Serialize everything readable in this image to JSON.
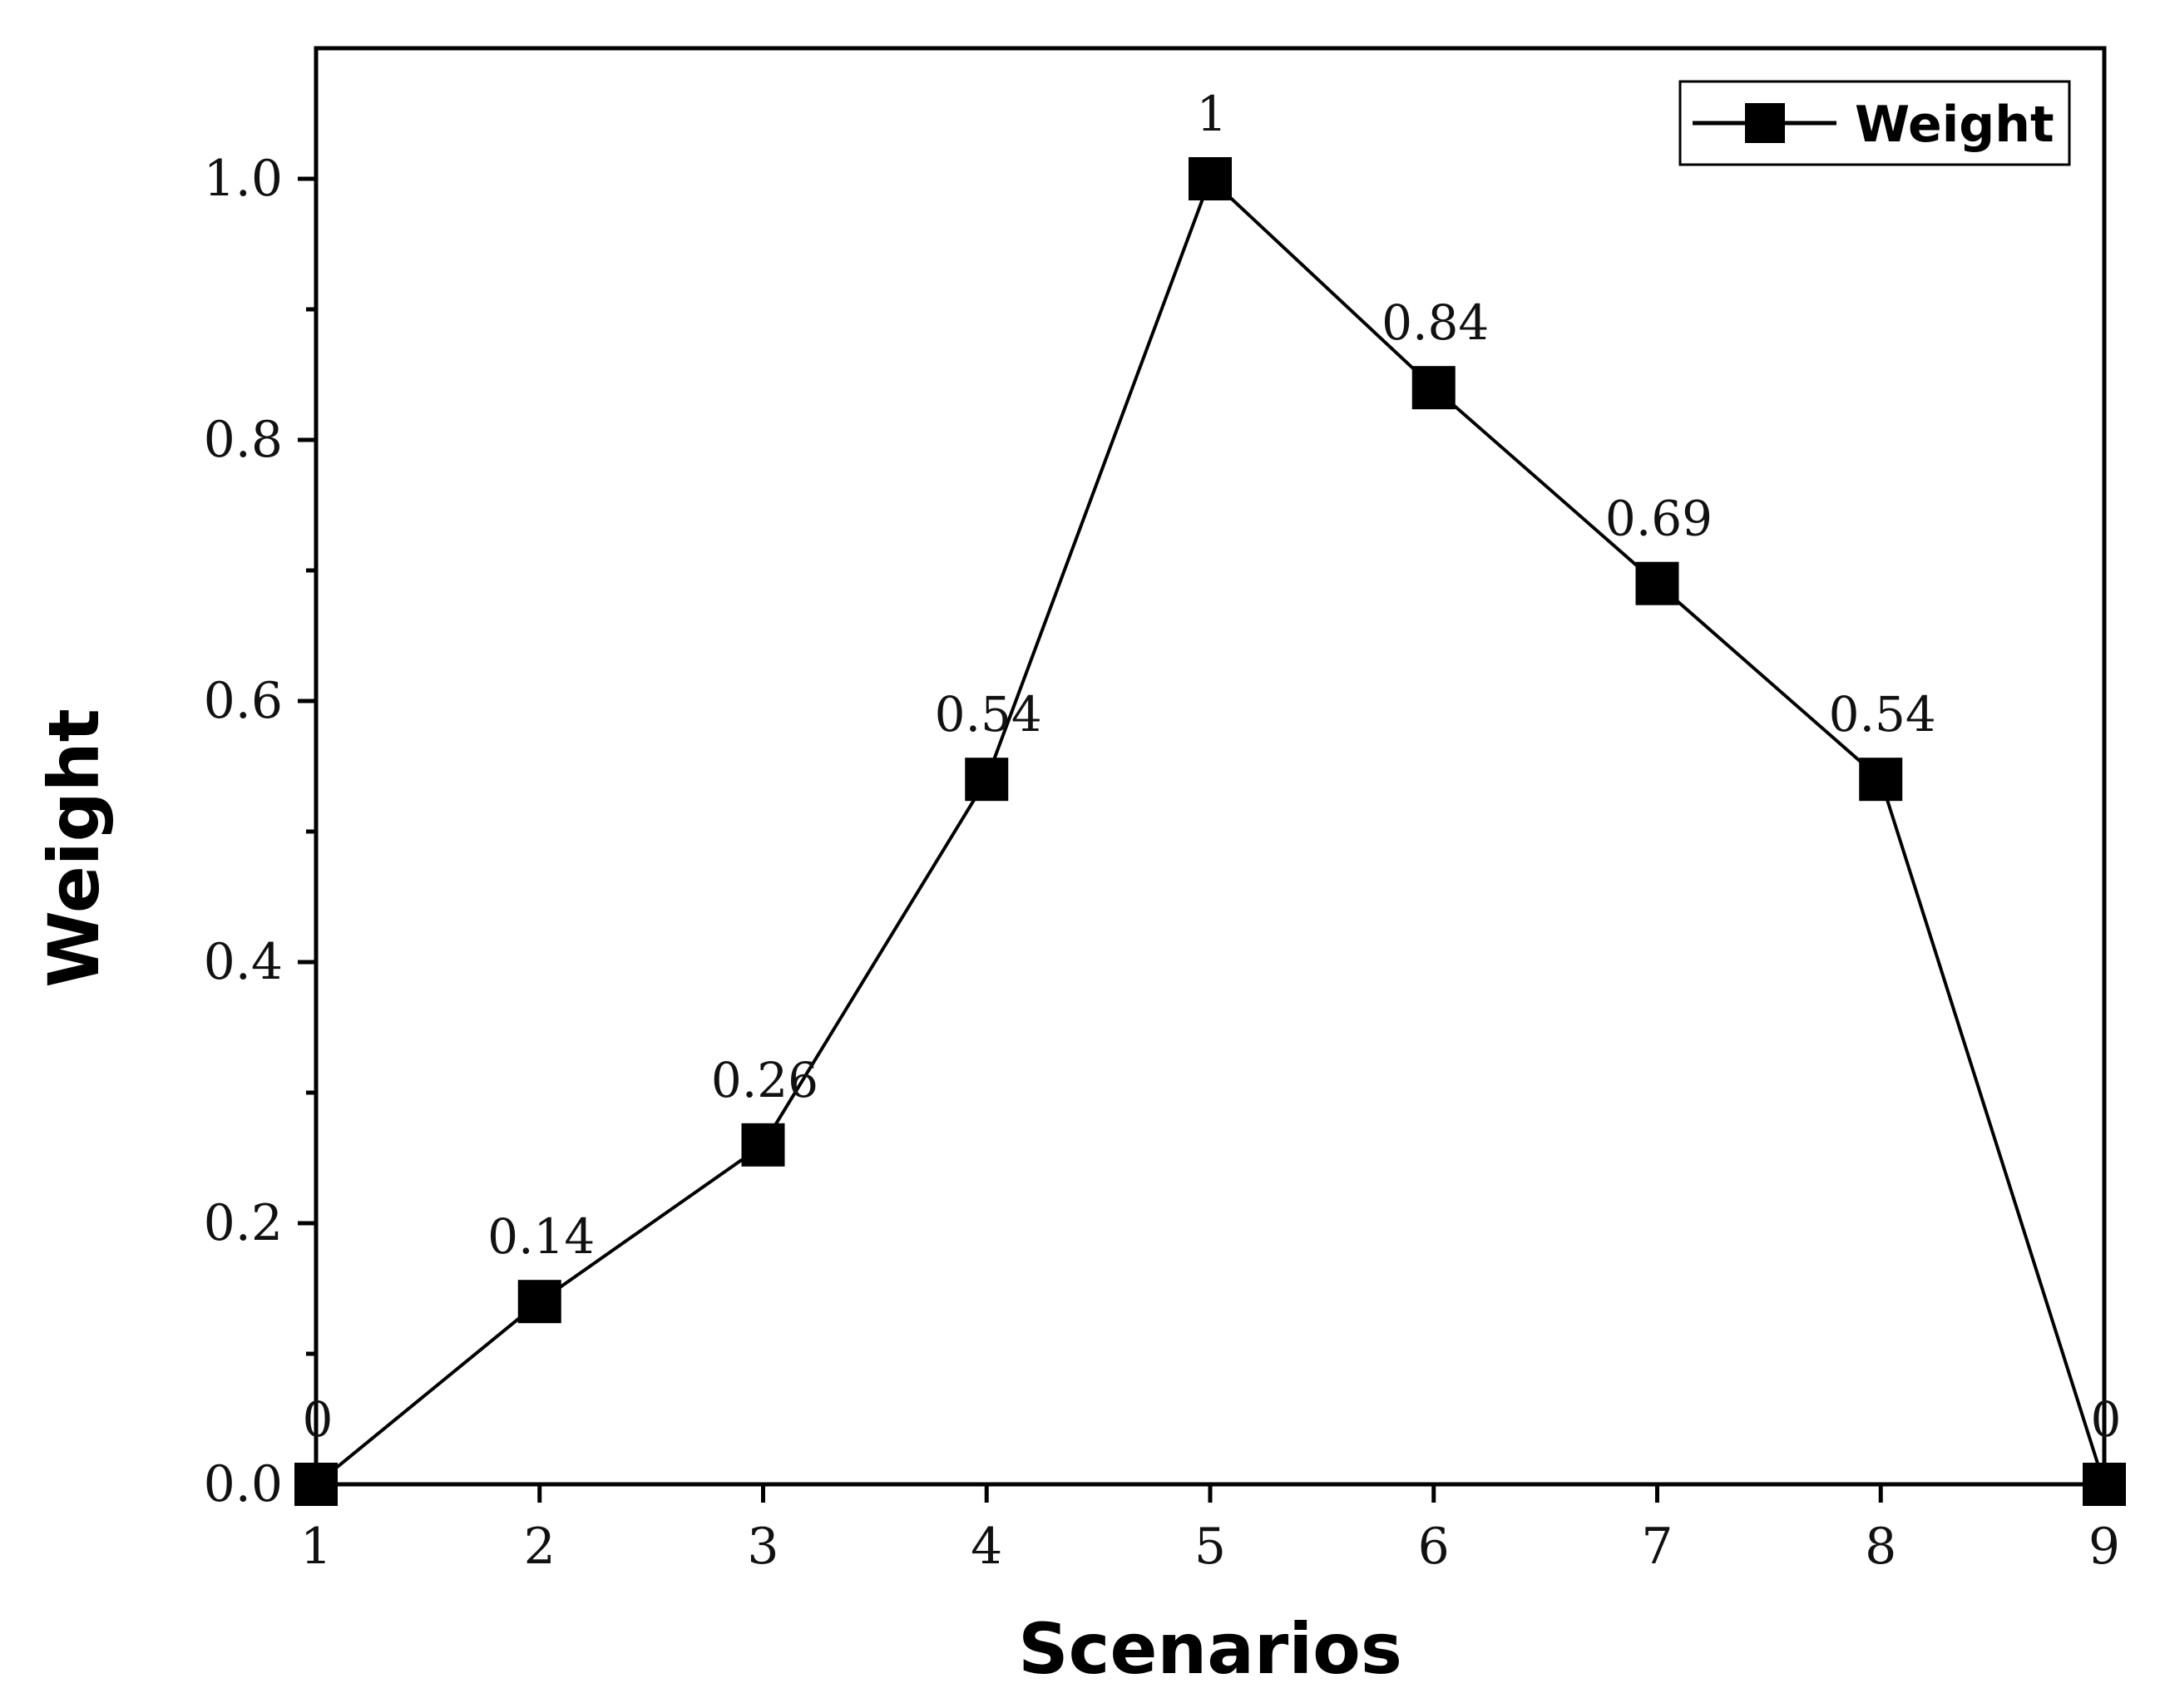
{
  "chart_data": {
    "type": "line",
    "xlabel": "Scenarios",
    "ylabel": "Weight",
    "x": [
      1,
      2,
      3,
      4,
      5,
      6,
      7,
      8,
      9
    ],
    "x_ticks": [
      "1",
      "2",
      "3",
      "4",
      "5",
      "6",
      "7",
      "8",
      "9"
    ],
    "y_ticks": [
      "0.0",
      "0.2",
      "0.4",
      "0.6",
      "0.8",
      "1.0"
    ],
    "xlim": [
      1,
      9
    ],
    "ylim": [
      0,
      1.1
    ],
    "grid": false,
    "legend_position": "top-right",
    "series": [
      {
        "name": "Weight",
        "marker": "square",
        "color": "#000000",
        "values": [
          0,
          0.14,
          0.26,
          0.54,
          1,
          0.84,
          0.69,
          0.54,
          0
        ],
        "data_labels": [
          "0",
          "0.14",
          "0.26",
          "0.54",
          "1",
          "0.84",
          "0.69",
          "0.54",
          "0"
        ]
      }
    ]
  }
}
